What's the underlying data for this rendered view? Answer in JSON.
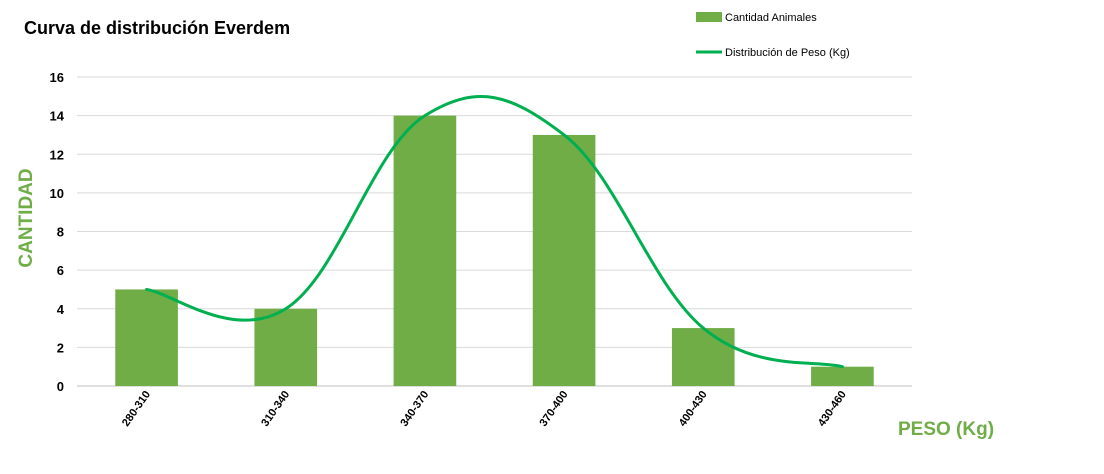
{
  "chart_data": {
    "type": "bar",
    "title": "Curva de distribución Everdem",
    "xlabel": "PESO (Kg)",
    "ylabel": "CANTIDAD",
    "categories": [
      "280-310",
      "310-340",
      "340-370",
      "370-400",
      "400-430",
      "430-460"
    ],
    "series": [
      {
        "name": "Cantidad Animales",
        "type": "bar",
        "values": [
          5,
          4,
          14,
          13,
          3,
          1
        ],
        "color": "#70ad47"
      },
      {
        "name": "Distribución de Peso (Kg)",
        "type": "line",
        "smooth": true,
        "values": [
          5,
          4,
          14,
          13,
          3,
          1
        ],
        "color": "#00b050"
      }
    ],
    "ylim": [
      0,
      16
    ],
    "yticks": [
      0,
      2,
      4,
      6,
      8,
      10,
      12,
      14,
      16
    ],
    "grid": true,
    "legend": "top-right",
    "axis_label_color": "#70ad47"
  }
}
